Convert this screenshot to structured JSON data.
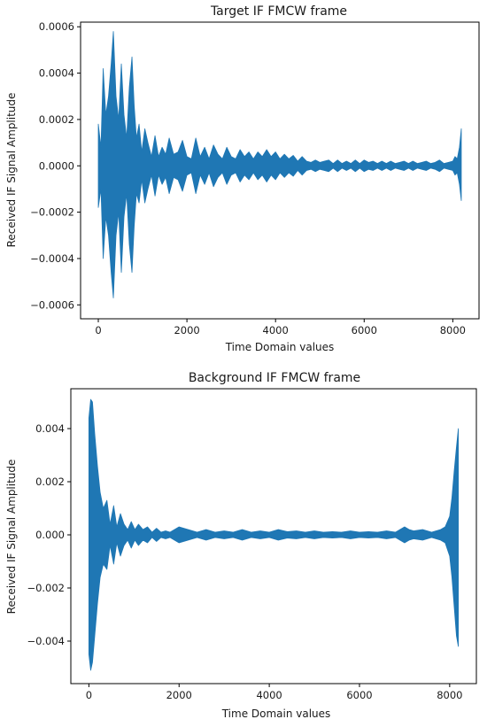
{
  "chart_data": [
    {
      "type": "line",
      "title": "Target IF FMCW frame",
      "xlabel": "Time Domain values",
      "ylabel": "Received IF Signal Amplitude",
      "xlim": [
        -400,
        8592
      ],
      "ylim": [
        -0.00066,
        0.00062
      ],
      "xticks": [
        0,
        2000,
        4000,
        6000,
        8000
      ],
      "xtick_labels": [
        "0",
        "2000",
        "4000",
        "6000",
        "8000"
      ],
      "yticks": [
        -0.0006,
        -0.0004,
        -0.0002,
        0.0,
        0.0002,
        0.0004,
        0.0006
      ],
      "ytick_labels": [
        "−0.0006",
        "−0.0004",
        "−0.0002",
        "0.0000",
        "0.0002",
        "0.0004",
        "0.0006"
      ],
      "grid": false,
      "line_color": "#1f77b4",
      "series": [
        {
          "envelope": {
            "x": [
              0,
              60,
              110,
              170,
              230,
              290,
              340,
              400,
              460,
              520,
              580,
              640,
              700,
              760,
              810,
              860,
              920,
              980,
              1050,
              1120,
              1200,
              1280,
              1360,
              1440,
              1520,
              1600,
              1700,
              1800,
              1900,
              2000,
              2100,
              2200,
              2300,
              2400,
              2500,
              2600,
              2700,
              2800,
              2900,
              3000,
              3100,
              3200,
              3300,
              3400,
              3500,
              3600,
              3700,
              3800,
              3900,
              4000,
              4100,
              4200,
              4300,
              4400,
              4500,
              4600,
              4700,
              4800,
              4900,
              5000,
              5100,
              5200,
              5300,
              5400,
              5500,
              5600,
              5700,
              5800,
              5900,
              6000,
              6100,
              6200,
              6300,
              6400,
              6500,
              6600,
              6700,
              6800,
              6900,
              7000,
              7100,
              7200,
              7300,
              7400,
              7500,
              7600,
              7700,
              7800,
              7900,
              8000,
              8050,
              8100,
              8150,
              8192
            ],
            "upper": [
              0.00018,
              8e-05,
              0.00042,
              0.00022,
              0.0003,
              0.00044,
              0.00058,
              0.0003,
              0.0002,
              0.00044,
              0.00022,
              0.00012,
              0.00034,
              0.00047,
              0.00026,
              0.00012,
              0.00018,
              6e-05,
              0.00016,
              0.0001,
              4e-05,
              0.00013,
              4e-05,
              8e-05,
              5e-05,
              0.00012,
              5e-05,
              6e-05,
              0.00011,
              4e-05,
              3e-05,
              0.00012,
              4e-05,
              8e-05,
              3e-05,
              9e-05,
              5e-05,
              3e-05,
              8e-05,
              4e-05,
              3e-05,
              7e-05,
              4e-05,
              6e-05,
              3e-05,
              6e-05,
              4e-05,
              7e-05,
              4e-05,
              6e-05,
              3e-05,
              5e-05,
              3e-05,
              4.5e-05,
              2e-05,
              4e-05,
              2e-05,
              1.5e-05,
              2.5e-05,
              1.5e-05,
              2e-05,
              2.5e-05,
              1e-05,
              2.5e-05,
              1e-05,
              2e-05,
              1e-05,
              2.5e-05,
              1e-05,
              2.5e-05,
              1.5e-05,
              2e-05,
              1e-05,
              2e-05,
              1e-05,
              2e-05,
              1e-05,
              1.5e-05,
              2e-05,
              1e-05,
              2e-05,
              1e-05,
              1.5e-05,
              2e-05,
              1e-05,
              1.5e-05,
              2.5e-05,
              1e-05,
              1.5e-05,
              2e-05,
              4e-05,
              3e-05,
              8e-05,
              0.00016
            ],
            "lower": [
              -0.00018,
              -0.0001,
              -0.0004,
              -0.00022,
              -0.0003,
              -0.00046,
              -0.00057,
              -0.0003,
              -0.0002,
              -0.00046,
              -0.00022,
              -0.00012,
              -0.00034,
              -0.00046,
              -0.00026,
              -0.00012,
              -0.00016,
              -6e-05,
              -0.00016,
              -0.0001,
              -4e-05,
              -0.00013,
              -4e-05,
              -8e-05,
              -5e-05,
              -0.00012,
              -5e-05,
              -6e-05,
              -0.00011,
              -4e-05,
              -3e-05,
              -0.00012,
              -4e-05,
              -8e-05,
              -3e-05,
              -9e-05,
              -5e-05,
              -3e-05,
              -8e-05,
              -4e-05,
              -3e-05,
              -7e-05,
              -4e-05,
              -6e-05,
              -3e-05,
              -6e-05,
              -4e-05,
              -7e-05,
              -4e-05,
              -6e-05,
              -3e-05,
              -5e-05,
              -3e-05,
              -4.5e-05,
              -2e-05,
              -4e-05,
              -2e-05,
              -1.5e-05,
              -2.5e-05,
              -1.5e-05,
              -2e-05,
              -2.5e-05,
              -1e-05,
              -2.5e-05,
              -1e-05,
              -2e-05,
              -1e-05,
              -2.5e-05,
              -1e-05,
              -2.5e-05,
              -1.5e-05,
              -2e-05,
              -1e-05,
              -2e-05,
              -1e-05,
              -2e-05,
              -1e-05,
              -1.5e-05,
              -2e-05,
              -1e-05,
              -2e-05,
              -1e-05,
              -1.5e-05,
              -2e-05,
              -1e-05,
              -1.5e-05,
              -2.5e-05,
              -1e-05,
              -1.5e-05,
              -2e-05,
              -4e-05,
              -3e-05,
              -8e-05,
              -0.00015
            ]
          }
        }
      ]
    },
    {
      "type": "line",
      "title": "Background IF FMCW frame",
      "xlabel": "Time Domain values",
      "ylabel": "Received IF Signal Amplitude",
      "xlim": [
        -400,
        8592
      ],
      "ylim": [
        -0.0056,
        0.0055
      ],
      "xticks": [
        0,
        2000,
        4000,
        6000,
        8000
      ],
      "xtick_labels": [
        "0",
        "2000",
        "4000",
        "6000",
        "8000"
      ],
      "yticks": [
        -0.004,
        -0.002,
        0.0,
        0.002,
        0.004
      ],
      "ytick_labels": [
        "−0.004",
        "−0.002",
        "0.000",
        "0.002",
        "0.004"
      ],
      "grid": false,
      "line_color": "#1f77b4",
      "series": [
        {
          "envelope": {
            "x": [
              0,
              40,
              80,
              130,
              190,
              250,
              320,
              400,
              470,
              550,
              620,
              700,
              780,
              860,
              940,
              1020,
              1100,
              1200,
              1300,
              1400,
              1500,
              1600,
              1700,
              1800,
              1900,
              2000,
              2200,
              2400,
              2600,
              2800,
              3000,
              3200,
              3400,
              3600,
              3800,
              4000,
              4200,
              4400,
              4600,
              4800,
              5000,
              5200,
              5400,
              5600,
              5800,
              6000,
              6200,
              6400,
              6600,
              6800,
              7000,
              7100,
              7200,
              7400,
              7600,
              7800,
              7900,
              8000,
              8050,
              8100,
              8150,
              8192
            ],
            "upper": [
              0.0044,
              0.0051,
              0.005,
              0.0038,
              0.0026,
              0.0016,
              0.001,
              0.0013,
              0.0004,
              0.0011,
              0.0003,
              0.0008,
              0.0004,
              0.0002,
              0.0005,
              0.0002,
              0.0004,
              0.0002,
              0.0003,
              0.0001,
              0.00025,
              0.0001,
              0.00015,
              0.0001,
              0.0002,
              0.0003,
              0.0002,
              0.0001,
              0.0002,
              0.0001,
              0.00015,
              0.0001,
              0.0002,
              0.0001,
              0.00015,
              0.0001,
              0.0002,
              0.00012,
              0.00015,
              0.0001,
              0.00015,
              0.0001,
              0.00012,
              0.0001,
              0.00015,
              0.0001,
              0.00012,
              0.0001,
              0.00015,
              0.0001,
              0.0003,
              0.0002,
              0.00015,
              0.0002,
              0.0001,
              0.0002,
              0.0003,
              0.0007,
              0.0014,
              0.0024,
              0.0033,
              0.004
            ],
            "lower": [
              -0.0045,
              -0.0051,
              -0.0048,
              -0.0038,
              -0.0026,
              -0.0016,
              -0.0011,
              -0.0013,
              -0.0004,
              -0.0011,
              -0.0003,
              -0.0008,
              -0.0004,
              -0.0002,
              -0.0005,
              -0.0002,
              -0.0004,
              -0.0002,
              -0.0003,
              -0.0001,
              -0.00025,
              -0.0001,
              -0.00015,
              -0.0001,
              -0.0002,
              -0.0003,
              -0.0002,
              -0.0001,
              -0.0002,
              -0.0001,
              -0.00015,
              -0.0001,
              -0.0002,
              -0.0001,
              -0.00015,
              -0.0001,
              -0.0002,
              -0.00012,
              -0.00015,
              -0.0001,
              -0.00015,
              -0.0001,
              -0.00012,
              -0.0001,
              -0.00015,
              -0.0001,
              -0.00012,
              -0.0001,
              -0.00015,
              -0.0001,
              -0.0003,
              -0.0002,
              -0.00015,
              -0.0002,
              -0.0001,
              -0.0002,
              -0.0003,
              -0.0008,
              -0.0016,
              -0.0027,
              -0.0038,
              -0.0042
            ]
          }
        }
      ]
    }
  ]
}
